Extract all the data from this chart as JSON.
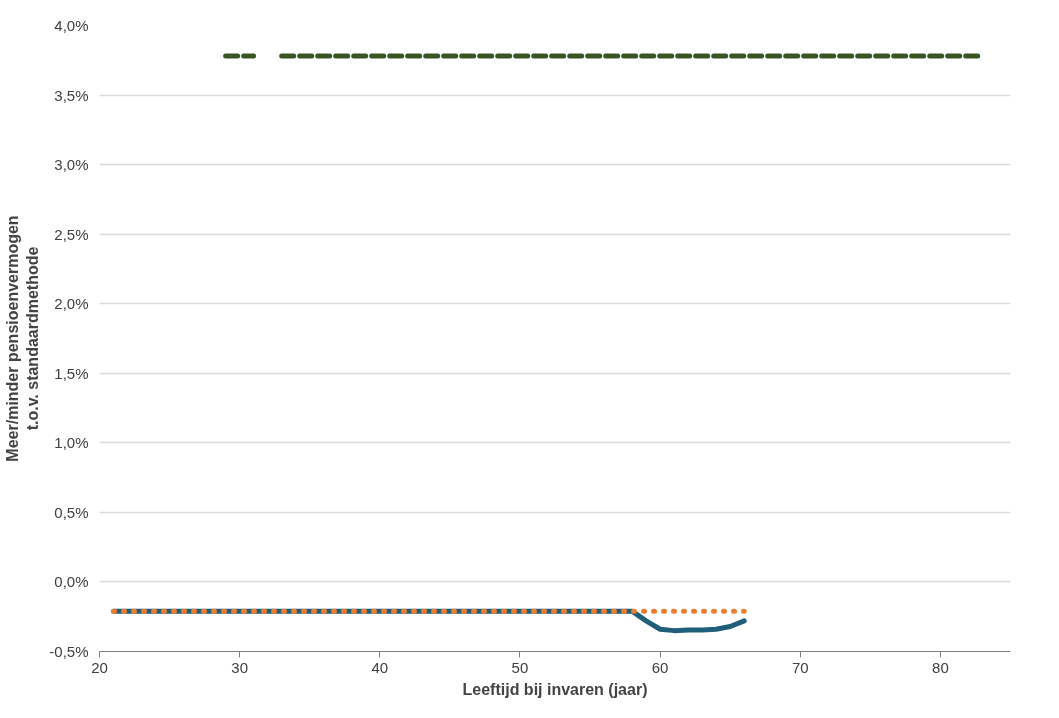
{
  "chart_data": {
    "type": "line",
    "xlabel": "Leeftijd bij invaren (jaar)",
    "ylabel": "Meer/minder pensioenvermogen\nt.o.v. standaardmethode",
    "xlim": [
      20,
      85
    ],
    "xticks": [
      20,
      30,
      40,
      50,
      60,
      70,
      80
    ],
    "ylim": [
      -0.5,
      4.0
    ],
    "yticks": [
      {
        "value": -0.5,
        "label": "-0,5%"
      },
      {
        "value": 0,
        "label": "0,0%"
      },
      {
        "value": 0.5,
        "label": "0,5%"
      },
      {
        "value": 1.0,
        "label": "1,0%"
      },
      {
        "value": 1.5,
        "label": "1,5%"
      },
      {
        "value": 2.0,
        "label": "2,0%"
      },
      {
        "value": 2.5,
        "label": "2,5%"
      },
      {
        "value": 3.0,
        "label": "3,0%"
      },
      {
        "value": 3.5,
        "label": "3,5%"
      },
      {
        "value": 4.0,
        "label": "4,0%"
      }
    ],
    "grid": "y",
    "series": [
      {
        "color": "#375623",
        "line_style": "dashed",
        "x": [
          29,
          30,
          31,
          32,
          33,
          35,
          40,
          45,
          50,
          55,
          60,
          65,
          70,
          75,
          80,
          83
        ],
        "values": [
          3.78,
          3.78,
          3.78,
          null,
          3.78,
          3.78,
          3.78,
          3.78,
          3.78,
          3.78,
          3.78,
          3.78,
          3.78,
          3.78,
          3.78,
          3.78
        ]
      },
      {
        "color": "#1f5f7a",
        "line_style": "solid",
        "x": [
          21,
          30,
          40,
          50,
          58,
          59,
          60,
          61,
          62,
          63,
          64,
          65,
          66
        ],
        "values": [
          -0.21,
          -0.21,
          -0.21,
          -0.21,
          -0.21,
          -0.28,
          -0.34,
          -0.35,
          -0.345,
          -0.345,
          -0.34,
          -0.32,
          -0.28
        ]
      },
      {
        "color": "#ed7d31",
        "line_style": "dotted",
        "x": [
          21,
          30,
          40,
          50,
          60,
          66
        ],
        "values": [
          -0.21,
          -0.21,
          -0.21,
          -0.21,
          -0.21,
          -0.21
        ]
      }
    ]
  }
}
